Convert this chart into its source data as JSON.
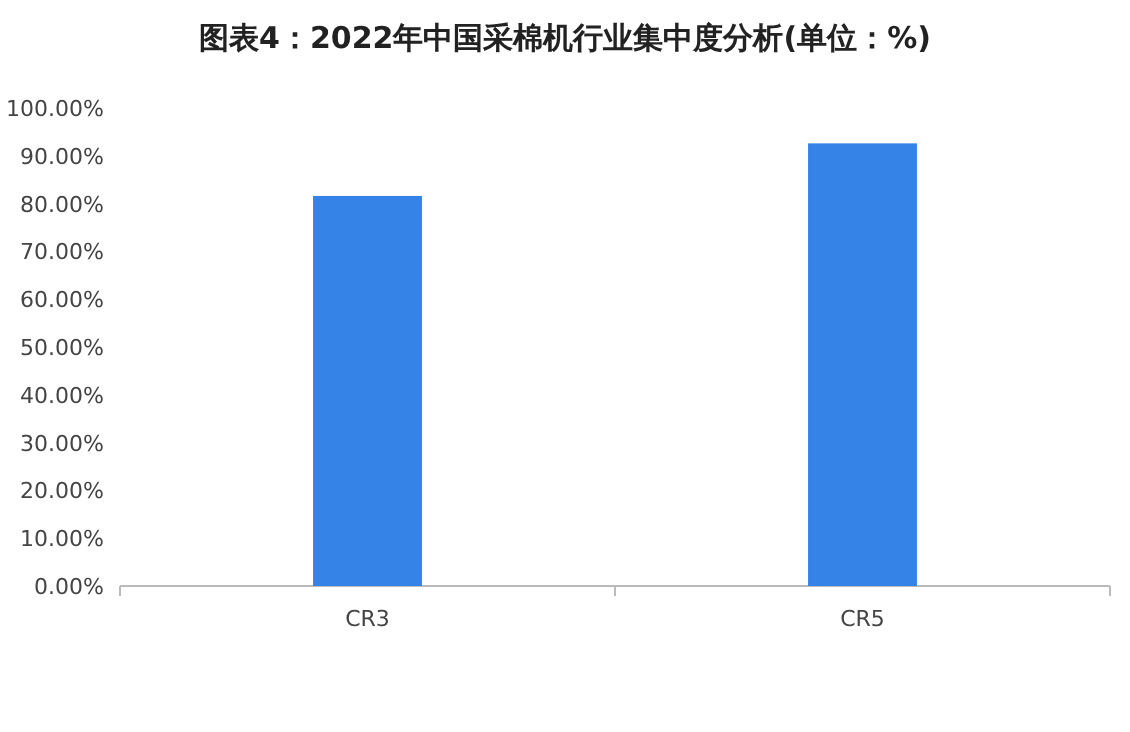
{
  "chart_data": {
    "type": "bar",
    "title": "图表4：2022年中国采棉机行业集中度分析(单位：%)",
    "categories": [
      "CR3",
      "CR5"
    ],
    "values": [
      81.6,
      92.6
    ],
    "color": "#3583e6",
    "ylim": [
      0,
      100
    ],
    "yticks": [
      {
        "value": 0,
        "label": "0.00%"
      },
      {
        "value": 10,
        "label": "10.00%"
      },
      {
        "value": 20,
        "label": "20.00%"
      },
      {
        "value": 30,
        "label": "30.00%"
      },
      {
        "value": 40,
        "label": "40.00%"
      },
      {
        "value": 50,
        "label": "50.00%"
      },
      {
        "value": 60,
        "label": "60.00%"
      },
      {
        "value": 70,
        "label": "70.00%"
      },
      {
        "value": 80,
        "label": "80.00%"
      },
      {
        "value": 90,
        "label": "90.00%"
      },
      {
        "value": 100,
        "label": "100.00%"
      }
    ],
    "grid": false
  }
}
